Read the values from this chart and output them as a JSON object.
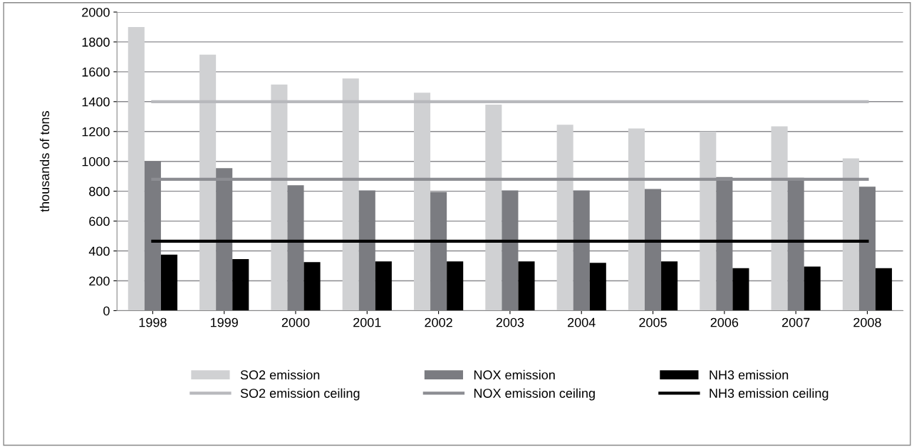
{
  "chart_data": {
    "type": "bar",
    "ylabel": "thousands of tons",
    "categories": [
      "1998",
      "1999",
      "2000",
      "2001",
      "2002",
      "2003",
      "2004",
      "2005",
      "2006",
      "2007",
      "2008"
    ],
    "series": [
      {
        "name": "SO2 emission",
        "color": "#d0d1d3",
        "values": [
          1900,
          1715,
          1515,
          1555,
          1460,
          1380,
          1245,
          1220,
          1200,
          1235,
          1020
        ]
      },
      {
        "name": "NOX emission",
        "color": "#7b7c81",
        "values": [
          1000,
          955,
          840,
          805,
          795,
          805,
          805,
          815,
          895,
          890,
          830
        ]
      },
      {
        "name": "NH3 emission",
        "color": "#000000",
        "values": [
          375,
          345,
          325,
          330,
          330,
          330,
          320,
          330,
          285,
          295,
          285
        ]
      },
      {
        "name": "SO2 emission ceiling",
        "type": "line",
        "color": "#b8b9bd",
        "values": [
          1400,
          1400,
          1400,
          1400,
          1400,
          1400,
          1400,
          1400,
          1400,
          1400,
          1400
        ]
      },
      {
        "name": "NOX emission ceiling",
        "type": "line",
        "color": "#8c8d92",
        "values": [
          880,
          880,
          880,
          880,
          880,
          880,
          880,
          880,
          880,
          880,
          880
        ]
      },
      {
        "name": "NH3 emission ceiling",
        "type": "line",
        "color": "#000000",
        "values": [
          465,
          465,
          465,
          465,
          465,
          465,
          465,
          465,
          465,
          465,
          465
        ]
      }
    ],
    "ylim": [
      0,
      2000
    ],
    "yticks": [
      0,
      200,
      400,
      600,
      800,
      1000,
      1200,
      1400,
      1600,
      1800,
      2000
    ],
    "grid": "y",
    "legend": "bottom",
    "marker": "none",
    "line_style": "solid"
  }
}
